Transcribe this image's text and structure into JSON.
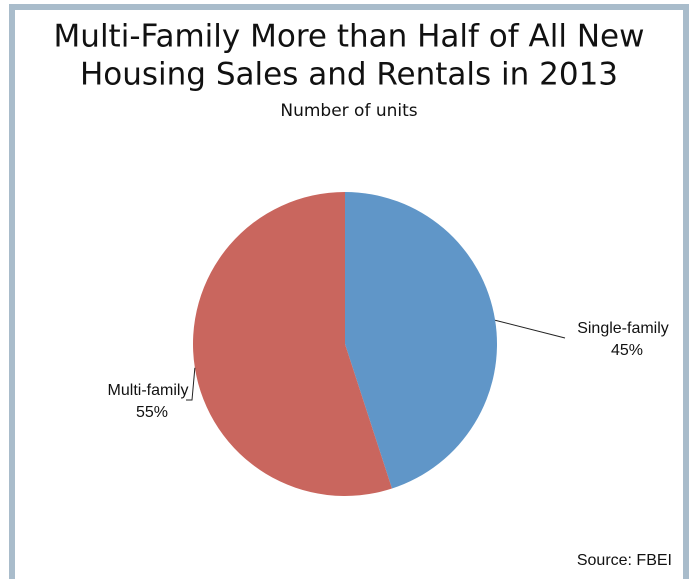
{
  "chart_data": {
    "type": "pie",
    "title": [
      "Multi-Family More than Half of All New",
      "Housing Sales and Rentals in 2013"
    ],
    "subtitle": "Number of units",
    "categories": [
      "Single-family",
      "Multi-family"
    ],
    "values": [
      45,
      55
    ],
    "value_labels": [
      "45%",
      "55%"
    ],
    "colors": [
      "#6096c8",
      "#c9665e"
    ],
    "source": "Source: FBEI"
  }
}
